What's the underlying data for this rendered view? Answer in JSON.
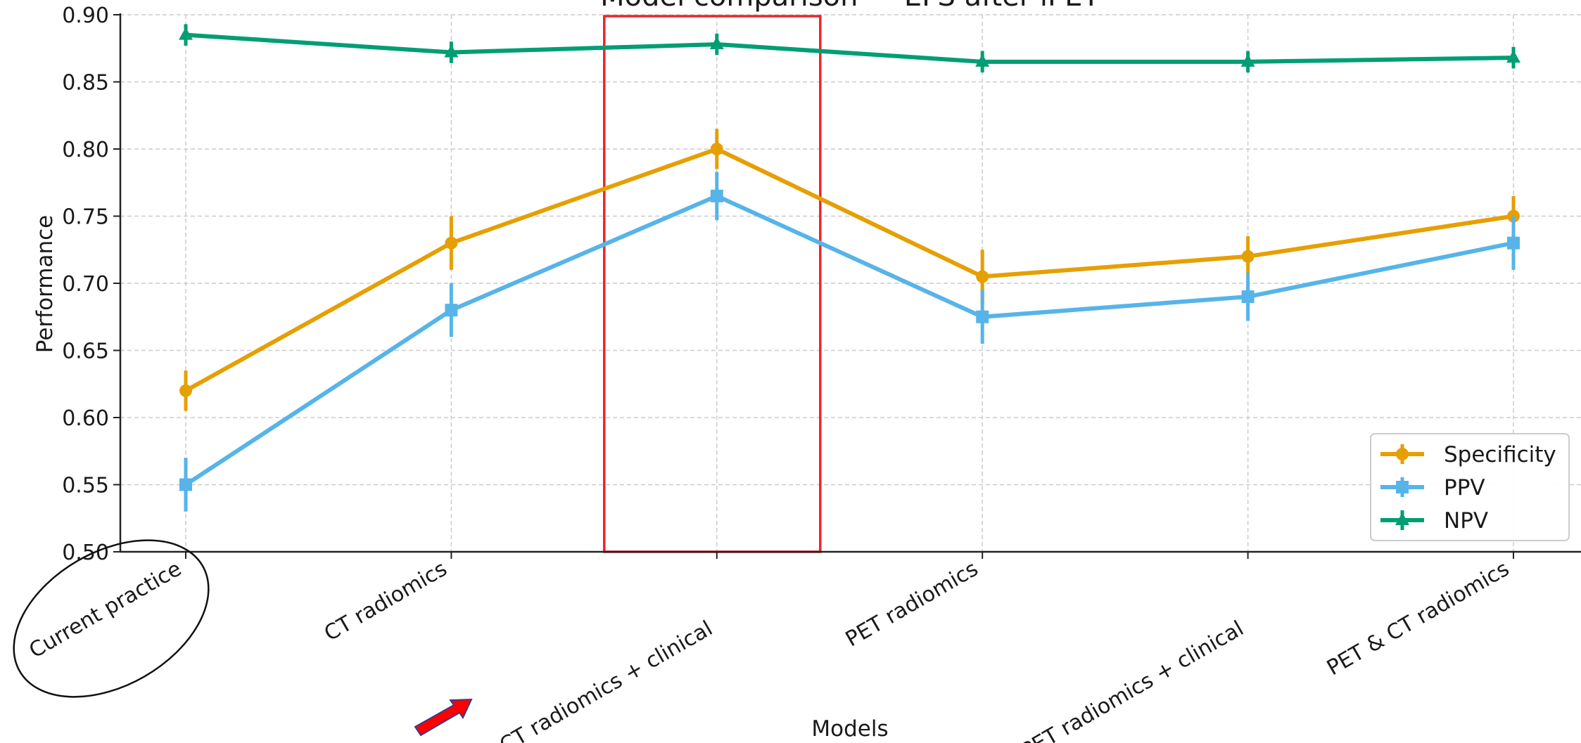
{
  "chart_data": {
    "type": "line",
    "title": "Model comparison — EFS after iPET",
    "xlabel": "Models",
    "ylabel": "Performance",
    "ylim": [
      0.5,
      0.9
    ],
    "yticks": [
      "0.50",
      "0.55",
      "0.60",
      "0.65",
      "0.70",
      "0.75",
      "0.80",
      "0.85",
      "0.90"
    ],
    "grid": true,
    "legend_position": "lower-right",
    "categories": [
      "Current practice",
      "CT radiomics",
      "CT radiomics + clinical",
      "PET radiomics",
      "PET radiomics + clinical",
      "PET & CT radiomics"
    ],
    "series": [
      {
        "name": "Specificity",
        "color": "#E69F00",
        "marker": "circle",
        "values": [
          0.62,
          0.73,
          0.8,
          0.705,
          0.72,
          0.75
        ],
        "errors": [
          0.015,
          0.02,
          0.015,
          0.02,
          0.015,
          0.015
        ]
      },
      {
        "name": "PPV",
        "color": "#56B4E9",
        "marker": "square",
        "values": [
          0.55,
          0.68,
          0.765,
          0.675,
          0.69,
          0.73
        ],
        "errors": [
          0.02,
          0.02,
          0.018,
          0.02,
          0.018,
          0.02
        ]
      },
      {
        "name": "NPV",
        "color": "#009E73",
        "marker": "triangle",
        "values": [
          0.885,
          0.872,
          0.878,
          0.865,
          0.865,
          0.868
        ],
        "errors": [
          0.008,
          0.008,
          0.008,
          0.008,
          0.008,
          0.008
        ]
      }
    ],
    "annotations": {
      "highlight_box_color": "#E8262B",
      "highlight_category": "CT radiomics + clinical",
      "circled_label": "Current practice",
      "arrow_color": "#FF0000",
      "arrow_target": "CT radiomics + clinical"
    }
  }
}
